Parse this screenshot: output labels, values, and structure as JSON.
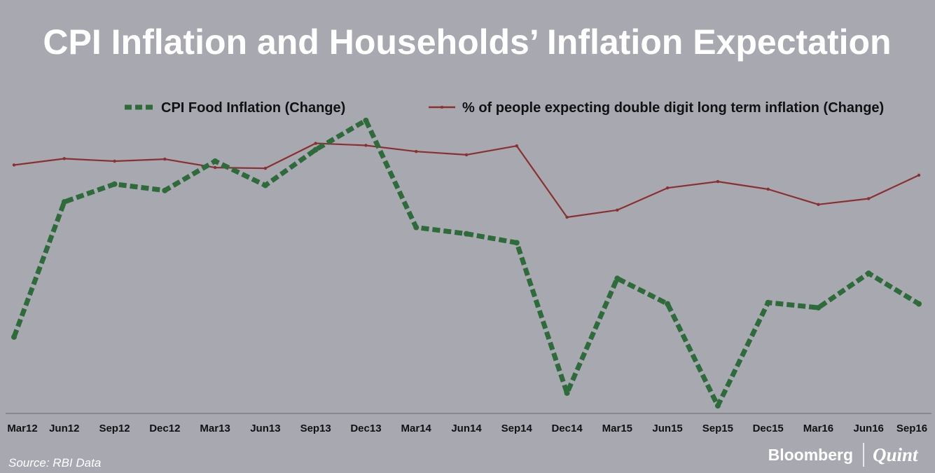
{
  "chart_data": {
    "type": "line",
    "title": "CPI Inflation and Households’ Inflation Expectation",
    "xlabel": "",
    "ylabel": "",
    "categories": [
      "Mar12",
      "Jun12",
      "Sep12",
      "Dec12",
      "Mar13",
      "Jun13",
      "Sep13",
      "Dec13",
      "Mar14",
      "Jun14",
      "Sep14",
      "Dec14",
      "Mar15",
      "Jun15",
      "Sep15",
      "Dec15",
      "Mar16",
      "Jun16",
      "Sep16"
    ],
    "series": [
      {
        "name": "CPI Food Inflation (Change)",
        "color": "#2e6b3a",
        "style": "dashed",
        "values": [
          23,
          76,
          83,
          80.5,
          92,
          82.5,
          96.5,
          108,
          66,
          63.5,
          60,
          1,
          46,
          36,
          -4,
          36.5,
          34.5,
          48,
          36
        ]
      },
      {
        "name": "% of people expecting double digit long term inflation (Change)",
        "color": "#8b3030",
        "style": "solid",
        "values": [
          90.5,
          93,
          92,
          92.8,
          89.5,
          89.2,
          99,
          98.2,
          95.8,
          94.5,
          98,
          70,
          72.8,
          81.5,
          84,
          81,
          75,
          77.3,
          86.5
        ]
      }
    ],
    "ylim": [
      -7,
      125
    ],
    "grid": false,
    "legend": "top"
  },
  "source": "Source: RBI Data",
  "brand": {
    "left": "Bloomberg",
    "right": "Quint"
  }
}
